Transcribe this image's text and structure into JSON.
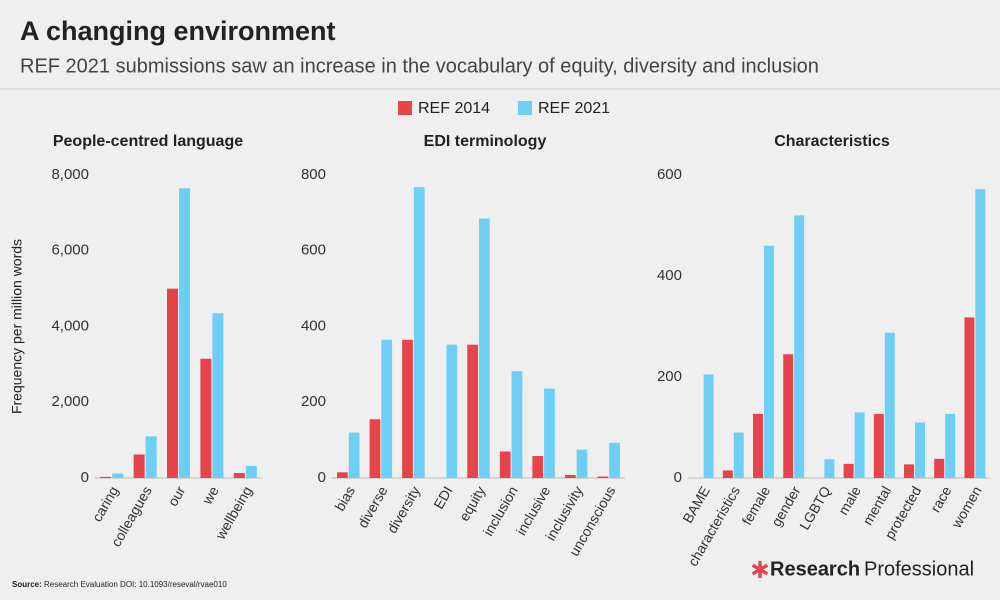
{
  "header": {
    "title": "A changing environment",
    "subtitle": "REF 2021 submissions saw an increase in the vocabulary of equity, diversity and inclusion"
  },
  "chart_data": [
    {
      "type": "bar",
      "title": "People-centred language",
      "y_label": "Frequency per million words",
      "categories": [
        "caring",
        "colleagues",
        "our",
        "we",
        "wellbeing"
      ],
      "series": [
        {
          "name": "REF 2014",
          "color": "#e5444b",
          "values": [
            30,
            620,
            5000,
            3150,
            130
          ]
        },
        {
          "name": "REF 2021",
          "color": "#6dcff6",
          "values": [
            120,
            1100,
            7650,
            4350,
            320
          ]
        }
      ],
      "ylim": [
        0,
        8000
      ],
      "yticks": [
        0,
        {
          "value": 2000,
          "label": "2,000"
        },
        {
          "value": 4000,
          "label": "4,000"
        },
        {
          "value": 6000,
          "label": "6,000"
        },
        {
          "value": 8000,
          "label": "8,000"
        }
      ]
    },
    {
      "type": "bar",
      "title": "EDI terminology",
      "categories": [
        "bias",
        "diverse",
        "diversity",
        "EDI",
        "equity",
        "inclusion",
        "inclusive",
        "inclusivity",
        "unconscious"
      ],
      "series": [
        {
          "name": "REF 2014",
          "color": "#e5444b",
          "values": [
            15,
            155,
            365,
            0,
            352,
            70,
            58,
            8,
            4
          ]
        },
        {
          "name": "REF 2021",
          "color": "#6dcff6",
          "values": [
            120,
            365,
            768,
            352,
            685,
            282,
            236,
            75,
            93
          ]
        }
      ],
      "ylim": [
        0,
        800
      ],
      "yticks": [
        0,
        200,
        400,
        600,
        800
      ]
    },
    {
      "type": "bar",
      "title": "Characteristics",
      "categories": [
        "BAME",
        "characteristics",
        "female",
        "gender",
        "LGBTQ",
        "male",
        "mental",
        "protected",
        "race",
        "women"
      ],
      "series": [
        {
          "name": "REF 2014",
          "color": "#e5444b",
          "values": [
            0,
            15,
            127,
            245,
            0,
            28,
            127,
            27,
            38,
            318
          ]
        },
        {
          "name": "REF 2021",
          "color": "#6dcff6",
          "values": [
            205,
            90,
            460,
            520,
            37,
            130,
            288,
            110,
            127,
            572
          ]
        }
      ],
      "ylim": [
        0,
        600
      ],
      "yticks": [
        0,
        200,
        400,
        600
      ]
    }
  ],
  "source": {
    "label": "Source:",
    "text": "Research Evaluation DOI: 10.1093/reseval/rvae010"
  },
  "brand": {
    "bold": "Research",
    "regular": "Professional"
  }
}
